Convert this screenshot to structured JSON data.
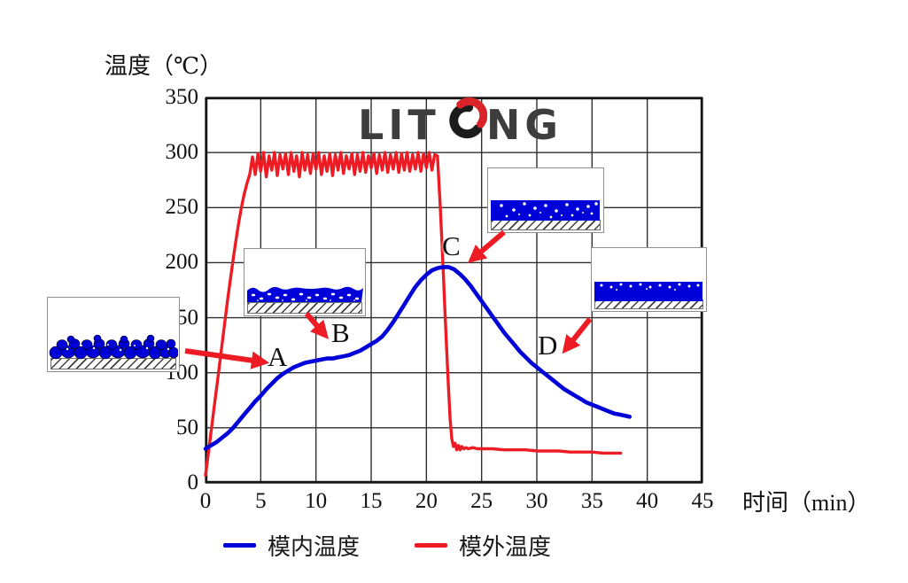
{
  "figure": {
    "background": "#ffffff"
  },
  "colors": {
    "grid": "#2f2f2f",
    "axis_box": "#151515",
    "blue_series": "#0000d8",
    "red_series": "#ed1c24",
    "arrow_red": "#ed1c24",
    "logo_gray": "#3d3d3d",
    "logo_red": "#d8232a"
  },
  "axes": {
    "y_title": "温度（℃）",
    "x_title": "时间（min）"
  },
  "logo": {
    "left_text": "LIT",
    "right_text": "NG",
    "name": "LITONG",
    "swirl_icon": "litong-o-swirl-icon"
  },
  "legend": {
    "position": "bottom",
    "items": [
      {
        "label": "模内温度",
        "color": "#0000d8"
      },
      {
        "label": "模外温度",
        "color": "#ed1c24"
      }
    ]
  },
  "insets": [
    {
      "id": "A",
      "depicts": "blue-granules-on-hatched-mold"
    },
    {
      "id": "B",
      "depicts": "melted-blue-layer-wavy-top-with-bubbles"
    },
    {
      "id": "C",
      "depicts": "expanded-blue-liquid-layer-with-bubbles"
    },
    {
      "id": "D",
      "depicts": "solidified-blue-layer-bubbles-at-surface"
    }
  ],
  "chart_data": {
    "type": "line",
    "title": "",
    "xlabel": "时间（min）",
    "ylabel": "温度（℃）",
    "xlim": [
      0,
      45
    ],
    "ylim": [
      0,
      350
    ],
    "x_ticks": [
      0,
      5,
      10,
      15,
      20,
      25,
      30,
      35,
      40,
      45
    ],
    "y_ticks": [
      0,
      50,
      100,
      150,
      200,
      250,
      300,
      350
    ],
    "grid": true,
    "legend_position": "bottom",
    "annotations": [
      {
        "label": "A",
        "x_min": 6,
        "temp_c": 100
      },
      {
        "label": "B",
        "x_min": 12,
        "temp_c": 125
      },
      {
        "label": "C",
        "x_min": 21.5,
        "temp_c": 210
      },
      {
        "label": "D",
        "x_min": 30.5,
        "temp_c": 115
      }
    ],
    "series": [
      {
        "name": "模内温度",
        "color": "#0000d8",
        "points": [
          [
            0,
            31
          ],
          [
            0.5,
            34
          ],
          [
            1,
            37
          ],
          [
            1.5,
            41
          ],
          [
            2,
            45
          ],
          [
            2.5,
            50
          ],
          [
            3,
            56
          ],
          [
            3.5,
            62
          ],
          [
            4,
            68
          ],
          [
            4.5,
            74
          ],
          [
            5,
            79
          ],
          [
            5.5,
            85
          ],
          [
            6,
            90
          ],
          [
            6.5,
            95
          ],
          [
            7,
            99
          ],
          [
            7.5,
            102
          ],
          [
            8,
            105
          ],
          [
            8.5,
            107
          ],
          [
            9,
            109
          ],
          [
            9.5,
            110
          ],
          [
            10,
            111
          ],
          [
            10.5,
            112
          ],
          [
            11,
            113
          ],
          [
            11.5,
            113
          ],
          [
            12,
            114
          ],
          [
            12.5,
            115
          ],
          [
            13,
            116
          ],
          [
            13.5,
            118
          ],
          [
            14,
            120
          ],
          [
            14.5,
            123
          ],
          [
            15,
            126
          ],
          [
            15.5,
            129
          ],
          [
            16,
            133
          ],
          [
            16.5,
            139
          ],
          [
            17,
            146
          ],
          [
            17.5,
            154
          ],
          [
            18,
            162
          ],
          [
            18.5,
            170
          ],
          [
            19,
            178
          ],
          [
            19.5,
            184
          ],
          [
            20,
            189
          ],
          [
            20.5,
            193
          ],
          [
            21,
            195
          ],
          [
            21.5,
            196
          ],
          [
            22,
            196
          ],
          [
            22.5,
            194
          ],
          [
            23,
            190
          ],
          [
            23.5,
            185
          ],
          [
            24,
            179
          ],
          [
            24.5,
            172
          ],
          [
            25,
            165
          ],
          [
            25.5,
            158
          ],
          [
            26,
            151
          ],
          [
            26.5,
            144
          ],
          [
            27,
            137
          ],
          [
            27.5,
            131
          ],
          [
            28,
            125
          ],
          [
            28.5,
            119
          ],
          [
            29,
            114
          ],
          [
            29.5,
            109
          ],
          [
            30,
            105
          ],
          [
            30.5,
            101
          ],
          [
            31,
            97
          ],
          [
            31.5,
            93
          ],
          [
            32,
            89
          ],
          [
            32.5,
            85
          ],
          [
            33,
            82
          ],
          [
            33.5,
            79
          ],
          [
            34,
            76
          ],
          [
            34.5,
            73
          ],
          [
            35,
            71
          ],
          [
            35.5,
            69
          ],
          [
            36,
            67
          ],
          [
            36.5,
            65
          ],
          [
            37,
            63
          ],
          [
            37.5,
            62
          ],
          [
            38,
            61
          ],
          [
            38.4,
            60
          ]
        ]
      },
      {
        "name": "模外温度",
        "color": "#ed1c24",
        "points": [
          [
            0,
            7
          ],
          [
            0.25,
            26
          ],
          [
            0.5,
            46
          ],
          [
            0.75,
            66
          ],
          [
            1,
            86
          ],
          [
            1.25,
            106
          ],
          [
            1.5,
            126
          ],
          [
            1.75,
            146
          ],
          [
            2,
            166
          ],
          [
            2.25,
            185
          ],
          [
            2.5,
            203
          ],
          [
            2.75,
            220
          ],
          [
            3,
            236
          ],
          [
            3.25,
            250
          ],
          [
            3.5,
            262
          ],
          [
            3.75,
            272
          ],
          [
            4,
            280
          ],
          [
            4.25,
            296
          ],
          [
            4.5,
            280
          ],
          [
            4.75,
            299
          ],
          [
            5,
            283
          ],
          [
            5.25,
            300
          ],
          [
            5.5,
            278
          ],
          [
            5.75,
            297
          ],
          [
            6,
            284
          ],
          [
            6.25,
            300
          ],
          [
            6.5,
            279
          ],
          [
            6.75,
            298
          ],
          [
            7,
            285
          ],
          [
            7.25,
            299
          ],
          [
            7.5,
            280
          ],
          [
            7.75,
            300
          ],
          [
            8,
            283
          ],
          [
            8.25,
            297
          ],
          [
            8.5,
            278
          ],
          [
            8.75,
            300
          ],
          [
            9,
            284
          ],
          [
            9.25,
            298
          ],
          [
            9.5,
            281
          ],
          [
            9.75,
            299
          ],
          [
            10,
            285
          ],
          [
            10.25,
            300
          ],
          [
            10.5,
            280
          ],
          [
            10.75,
            297
          ],
          [
            11,
            283
          ],
          [
            11.25,
            299
          ],
          [
            11.5,
            279
          ],
          [
            11.75,
            298
          ],
          [
            12,
            284
          ],
          [
            12.25,
            300
          ],
          [
            12.5,
            281
          ],
          [
            12.75,
            297
          ],
          [
            13,
            285
          ],
          [
            13.25,
            299
          ],
          [
            13.5,
            280
          ],
          [
            13.75,
            298
          ],
          [
            14,
            283
          ],
          [
            14.25,
            300
          ],
          [
            14.5,
            282
          ],
          [
            14.75,
            297
          ],
          [
            15,
            286
          ],
          [
            15.25,
            299
          ],
          [
            15.5,
            281
          ],
          [
            15.75,
            298
          ],
          [
            16,
            284
          ],
          [
            16.25,
            300
          ],
          [
            16.5,
            282
          ],
          [
            16.75,
            298
          ],
          [
            17,
            285
          ],
          [
            17.25,
            300
          ],
          [
            17.5,
            282
          ],
          [
            17.75,
            299
          ],
          [
            18,
            284
          ],
          [
            18.25,
            300
          ],
          [
            18.5,
            283
          ],
          [
            18.75,
            298
          ],
          [
            19,
            285
          ],
          [
            19.25,
            300
          ],
          [
            19.5,
            283
          ],
          [
            19.75,
            299
          ],
          [
            20,
            286
          ],
          [
            20.25,
            300
          ],
          [
            20.5,
            284
          ],
          [
            20.75,
            298
          ],
          [
            21,
            297
          ],
          [
            21.1,
            280
          ],
          [
            21.25,
            252
          ],
          [
            21.4,
            220
          ],
          [
            21.55,
            186
          ],
          [
            21.7,
            152
          ],
          [
            21.85,
            118
          ],
          [
            22,
            86
          ],
          [
            22.15,
            58
          ],
          [
            22.3,
            40
          ],
          [
            22.45,
            33
          ],
          [
            22.6,
            36
          ],
          [
            22.75,
            30
          ],
          [
            22.9,
            34
          ],
          [
            23.05,
            30
          ],
          [
            23.2,
            33
          ],
          [
            23.4,
            31
          ],
          [
            23.6,
            32
          ],
          [
            23.8,
            31
          ],
          [
            24.2,
            32
          ],
          [
            24.6,
            31
          ],
          [
            25,
            31
          ],
          [
            26,
            31
          ],
          [
            27,
            30
          ],
          [
            28,
            30
          ],
          [
            29,
            30
          ],
          [
            30,
            29
          ],
          [
            31,
            29
          ],
          [
            32,
            29
          ],
          [
            33,
            28
          ],
          [
            34,
            28
          ],
          [
            35,
            28
          ],
          [
            36,
            27
          ],
          [
            37,
            27
          ],
          [
            37.6,
            27
          ]
        ]
      }
    ]
  }
}
